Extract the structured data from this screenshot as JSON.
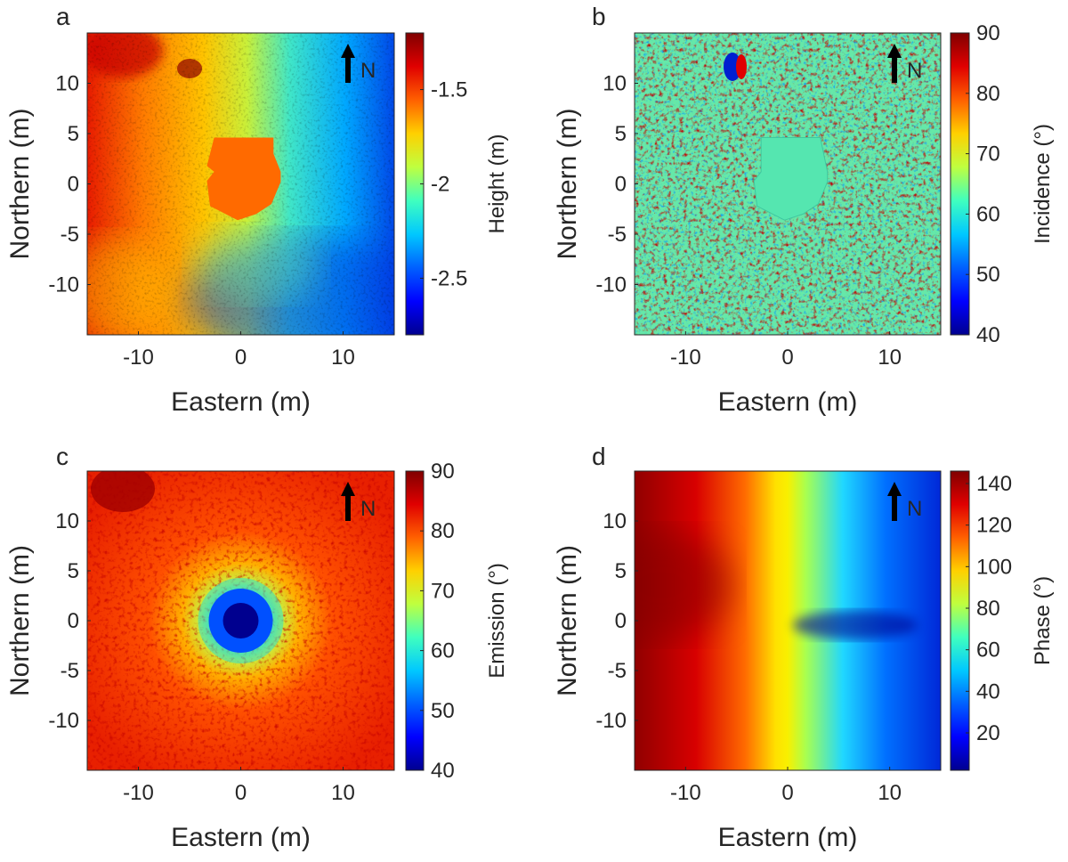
{
  "figure": {
    "background": "#ffffff",
    "north_label": "N"
  },
  "chart_data": [
    {
      "panel_label": "a",
      "type": "heatmap",
      "map_kind": "height",
      "xlabel": "Eastern (m)",
      "ylabel": "Northern (m)",
      "xlim": [
        -15,
        15
      ],
      "ylim": [
        -15,
        15
      ],
      "xticks": [
        -10,
        0,
        10
      ],
      "xtick_labels": [
        "-10",
        "0",
        "10"
      ],
      "yticks": [
        10,
        5,
        0,
        -5,
        -10
      ],
      "ytick_labels": [
        "10",
        "5",
        "0",
        "-5",
        "-10"
      ],
      "colorbar": {
        "label": "Height (m)",
        "range": [
          -2.8,
          -1.2
        ],
        "ticks": [
          -1.5,
          -2,
          -2.5
        ],
        "tick_labels": [
          "-1.5",
          "-2",
          "-2.5"
        ]
      },
      "lander_mask": {
        "color": "#ff6a00",
        "outline_m": [
          [
            -2.6,
            4.6
          ],
          [
            3.2,
            4.6
          ],
          [
            3.2,
            3.0
          ],
          [
            3.9,
            1.2
          ],
          [
            3.9,
            0.2
          ],
          [
            3.0,
            -2.0
          ],
          [
            1.5,
            -3.0
          ],
          [
            -0.3,
            -3.6
          ],
          [
            -3.0,
            -2.2
          ],
          [
            -3.3,
            0.3
          ],
          [
            -2.6,
            1.2
          ],
          [
            -3.3,
            1.8
          ]
        ]
      }
    },
    {
      "panel_label": "b",
      "type": "heatmap",
      "map_kind": "incidence",
      "xlabel": "Eastern (m)",
      "ylabel": "Northern (m)",
      "xlim": [
        -15,
        15
      ],
      "ylim": [
        -15,
        15
      ],
      "xticks": [
        -10,
        0,
        10
      ],
      "xtick_labels": [
        "-10",
        "0",
        "10"
      ],
      "yticks": [
        10,
        5,
        0,
        -5,
        -10
      ],
      "ytick_labels": [
        "10",
        "5",
        "0",
        "-5",
        "-10"
      ],
      "colorbar": {
        "label": "Incidence (°)",
        "range": [
          40,
          90
        ],
        "ticks": [
          90,
          80,
          70,
          60,
          50,
          40
        ],
        "tick_labels": [
          "90",
          "80",
          "70",
          "60",
          "50",
          "40"
        ]
      }
    },
    {
      "panel_label": "c",
      "type": "heatmap",
      "map_kind": "emission",
      "xlabel": "Eastern (m)",
      "ylabel": "Northern (m)",
      "xlim": [
        -15,
        15
      ],
      "ylim": [
        -15,
        15
      ],
      "xticks": [
        -10,
        0,
        10
      ],
      "xtick_labels": [
        "-10",
        "0",
        "10"
      ],
      "yticks": [
        10,
        5,
        0,
        -5,
        -10
      ],
      "ytick_labels": [
        "10",
        "5",
        "0",
        "-5",
        "-10"
      ],
      "colorbar": {
        "label": "Emission (°)",
        "range": [
          40,
          90
        ],
        "ticks": [
          90,
          80,
          70,
          60,
          50,
          40
        ],
        "tick_labels": [
          "90",
          "80",
          "70",
          "60",
          "50",
          "40"
        ]
      }
    },
    {
      "panel_label": "d",
      "type": "heatmap",
      "map_kind": "phase",
      "xlabel": "Eastern (m)",
      "ylabel": "Northern (m)",
      "xlim": [
        -15,
        15
      ],
      "ylim": [
        -15,
        15
      ],
      "xticks": [
        -10,
        0,
        10
      ],
      "xtick_labels": [
        "-10",
        "0",
        "10"
      ],
      "yticks": [
        10,
        5,
        0,
        -5,
        -10
      ],
      "ytick_labels": [
        "10",
        "5",
        "0",
        "-5",
        "-10"
      ],
      "colorbar": {
        "label": "Phase (°)",
        "range": [
          2,
          146
        ],
        "ticks": [
          140,
          120,
          100,
          80,
          60,
          40,
          20
        ],
        "tick_labels": [
          "140",
          "120",
          "100",
          "80",
          "60",
          "40",
          "20"
        ]
      }
    }
  ]
}
